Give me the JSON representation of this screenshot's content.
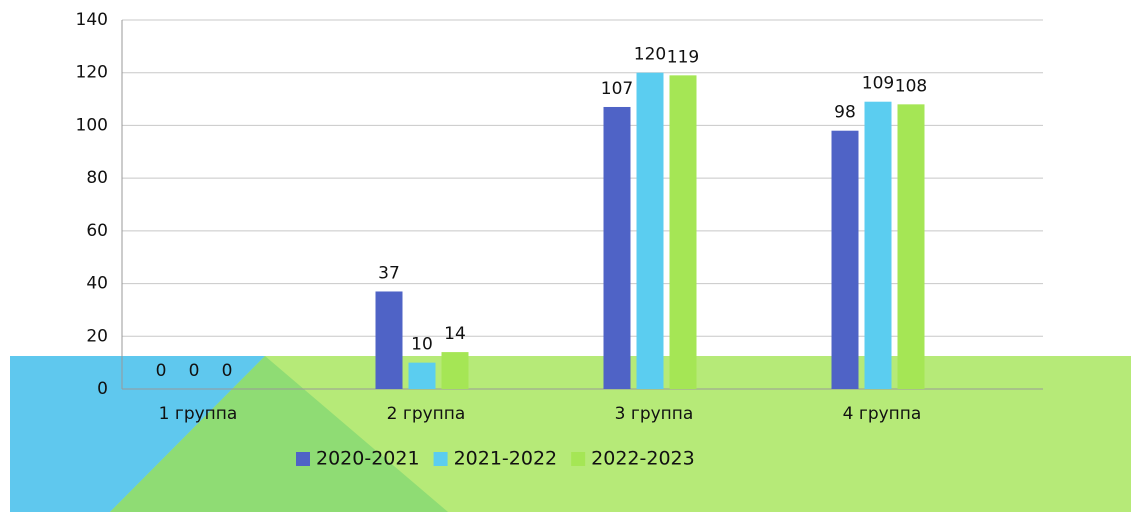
{
  "chart_data": {
    "type": "bar",
    "categories": [
      "1 группа",
      "2 группа",
      "3 группа",
      "4 группа"
    ],
    "series": [
      {
        "name": "2020-2021",
        "color": "#4f63c6",
        "values": [
          0,
          37,
          107,
          98
        ]
      },
      {
        "name": "2021-2022",
        "color": "#5bcdf0",
        "values": [
          0,
          10,
          120,
          109
        ]
      },
      {
        "name": "2022-2023",
        "color": "#a5e655",
        "values": [
          0,
          14,
          119,
          108
        ]
      }
    ],
    "ylim": [
      0,
      140
    ],
    "yticks": [
      0,
      20,
      40,
      60,
      80,
      100,
      120,
      140
    ],
    "grid": true,
    "legend": "bottom"
  }
}
